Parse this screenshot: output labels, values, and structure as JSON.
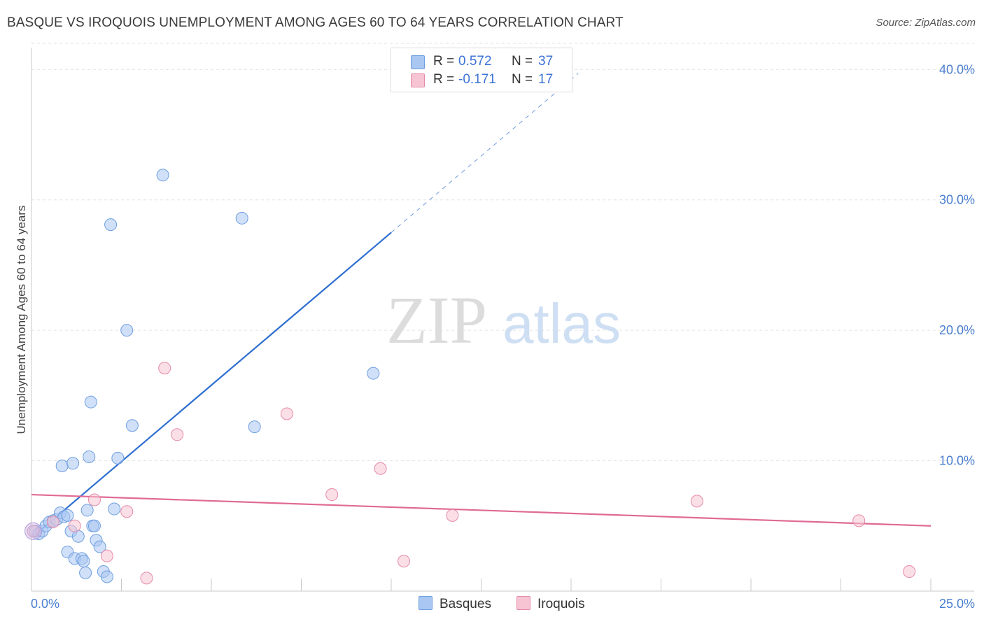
{
  "title": "BASQUE VS IROQUOIS UNEMPLOYMENT AMONG AGES 60 TO 64 YEARS CORRELATION CHART",
  "source": "Source: ZipAtlas.com",
  "watermark": {
    "zip": "ZIP",
    "atlas": "atlas"
  },
  "legend": {
    "rows": [
      {
        "r_label": "R =",
        "r_value": "0.572",
        "n_label": "N =",
        "n_value": "37",
        "color": "#a9c7f2",
        "border": "#6f9fe0"
      },
      {
        "r_label": "R =",
        "r_value": "-0.171",
        "n_label": "N =",
        "n_value": "17",
        "color": "#f7c4d4",
        "border": "#e58aa8"
      }
    ]
  },
  "bottom_legend": {
    "basques": "Basques",
    "iroquois": "Iroquois"
  },
  "chart_data": {
    "type": "scatter",
    "title": "BASQUE VS IROQUOIS UNEMPLOYMENT AMONG AGES 60 TO 64 YEARS CORRELATION CHART",
    "xlabel": "",
    "ylabel": "Unemployment Among Ages 60 to 64 years",
    "xlim": [
      0,
      25
    ],
    "ylim": [
      0,
      42
    ],
    "x_ticks": [
      "0.0%",
      "25.0%"
    ],
    "y_ticks": [
      {
        "value": 10,
        "label": "10.0%"
      },
      {
        "value": 20,
        "label": "20.0%"
      },
      {
        "value": 30,
        "label": "30.0%"
      },
      {
        "value": 40,
        "label": "40.0%"
      }
    ],
    "grid": true,
    "legend_position": "top-center",
    "series": [
      {
        "name": "Basques",
        "color": "#a9c7f2",
        "edge": "#6f9fe0",
        "line_color": "#2f6fd0",
        "trend": {
          "x0": 0.05,
          "y0": 4.2,
          "x1": 10.0,
          "y1": 27.5,
          "dash_to_x": 15.2,
          "dash_to_y": 39.7
        },
        "points": [
          [
            0.1,
            4.6
          ],
          [
            0.2,
            4.4
          ],
          [
            0.3,
            4.6
          ],
          [
            0.4,
            5.0
          ],
          [
            0.5,
            5.3
          ],
          [
            0.6,
            5.4
          ],
          [
            0.7,
            5.5
          ],
          [
            0.8,
            6.0
          ],
          [
            0.9,
            5.7
          ],
          [
            1.0,
            5.8
          ],
          [
            0.85,
            9.6
          ],
          [
            1.15,
            9.8
          ],
          [
            1.0,
            3.0
          ],
          [
            1.1,
            4.6
          ],
          [
            1.2,
            2.5
          ],
          [
            1.3,
            4.2
          ],
          [
            1.4,
            2.5
          ],
          [
            1.45,
            2.3
          ],
          [
            1.5,
            1.4
          ],
          [
            1.55,
            6.2
          ],
          [
            1.6,
            10.3
          ],
          [
            1.65,
            14.5
          ],
          [
            1.7,
            5.0
          ],
          [
            1.75,
            5.0
          ],
          [
            1.8,
            3.9
          ],
          [
            1.9,
            3.4
          ],
          [
            2.0,
            1.5
          ],
          [
            2.1,
            1.1
          ],
          [
            2.2,
            28.1
          ],
          [
            2.3,
            6.3
          ],
          [
            2.4,
            10.2
          ],
          [
            2.65,
            20.0
          ],
          [
            2.8,
            12.7
          ],
          [
            3.65,
            31.9
          ],
          [
            5.85,
            28.6
          ],
          [
            6.2,
            12.6
          ],
          [
            9.5,
            16.7
          ]
        ]
      },
      {
        "name": "Iroquois",
        "color": "#f7c4d4",
        "edge": "#e58aa8",
        "line_color": "#e06a95",
        "trend": {
          "x0": 0.0,
          "y0": 7.4,
          "x1": 25.0,
          "y1": 5.0
        },
        "points": [
          [
            0.05,
            4.6
          ],
          [
            0.6,
            5.3
          ],
          [
            1.2,
            5.0
          ],
          [
            1.75,
            7.0
          ],
          [
            2.1,
            2.7
          ],
          [
            2.65,
            6.1
          ],
          [
            3.2,
            1.0
          ],
          [
            3.7,
            17.1
          ],
          [
            4.05,
            12.0
          ],
          [
            7.1,
            13.6
          ],
          [
            8.35,
            7.4
          ],
          [
            9.7,
            9.4
          ],
          [
            10.35,
            2.3
          ],
          [
            11.7,
            5.8
          ],
          [
            18.5,
            6.9
          ],
          [
            23.0,
            5.4
          ],
          [
            24.4,
            1.5
          ]
        ]
      }
    ]
  }
}
